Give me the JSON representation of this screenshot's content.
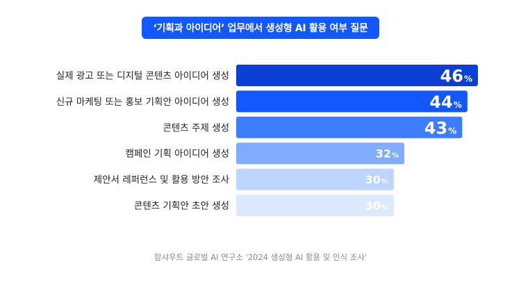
{
  "chart_data": {
    "type": "bar",
    "orientation": "horizontal",
    "title": "‘기획과 아이디어’ 업무에서 생성형 AI 활용 여부 질문",
    "categories": [
      "실제 광고 또는 디지털 콘텐츠 아이디어 생성",
      "신규 마케팅 또는 홍보 기획안 아이디어 생성",
      "콘텐츠 주제 생성",
      "캠페인 기획 아이디어 생성",
      "제안서 레퍼런스 및 활용 방안 조사",
      "콘텐츠 기획안 초안 생성"
    ],
    "values": [
      46,
      44,
      43,
      32,
      30,
      30
    ],
    "unit": "%",
    "xlim": [
      0,
      46
    ],
    "grid": false,
    "legend": "none",
    "colors": [
      "#0b3fd6",
      "#1357ff",
      "#3d7dfb",
      "#80adff",
      "#bcd6ff",
      "#dde9ff"
    ],
    "label_colors": [
      "#ffffff",
      "#ffffff",
      "#ffffff",
      "#ffffff",
      "#ffffff",
      "#ffffff"
    ],
    "source": "함샤우트 글로벌 AI 연구소 '2024 생성형 AI 활용 및 인식 조사'"
  }
}
